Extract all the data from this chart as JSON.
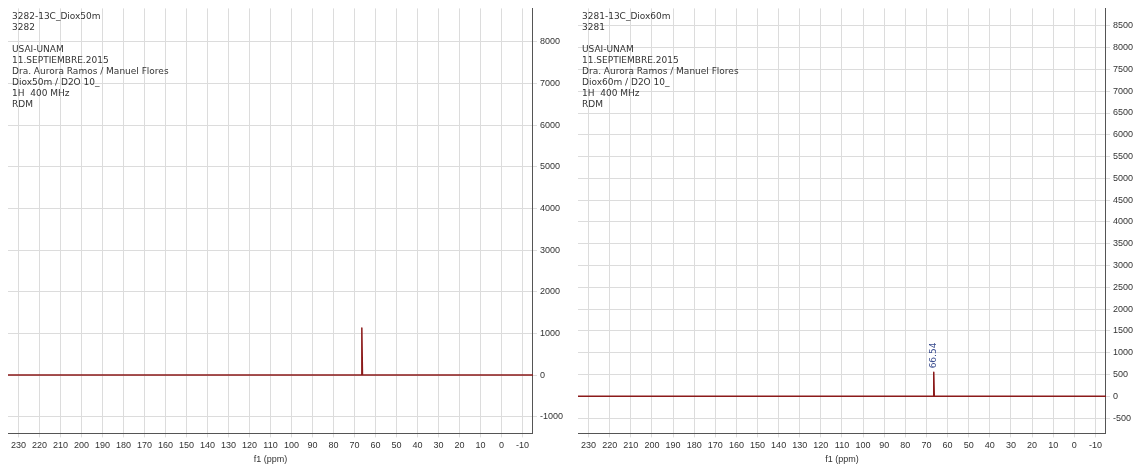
{
  "chart_data": [
    {
      "type": "line",
      "title": "3282-13C_Diox50m",
      "subtitle": "3282",
      "xlabel": "f1 (ppm)",
      "annotations": [
        "USAI-UNAM",
        "11.SEPTIEMBRE.2015",
        "Dra. Aurora Ramos / Manuel Flores",
        "Diox50m / D2O 10_",
        "1H  400 MHz",
        "RDM"
      ],
      "series": [
        {
          "color": "#8b1a1a",
          "x": [
            235,
            66.8,
            66.5,
            66.2,
            -15
          ],
          "values": [
            0,
            0,
            1130,
            0,
            0
          ]
        }
      ],
      "xlim": [
        235,
        -15
      ],
      "xticks": [
        230,
        220,
        210,
        200,
        190,
        180,
        170,
        160,
        150,
        140,
        130,
        120,
        110,
        100,
        90,
        80,
        70,
        60,
        50,
        40,
        30,
        20,
        10,
        0,
        -10
      ],
      "ylim": [
        -1400,
        8800
      ],
      "yticks": [
        -1000,
        0,
        1000,
        2000,
        3000,
        4000,
        5000,
        6000,
        7000,
        8000
      ],
      "grid": true,
      "legend": false,
      "marker": "none",
      "line_style": "solid"
    },
    {
      "type": "line",
      "title": "3281-13C_Diox60m",
      "subtitle": "3281",
      "xlabel": "f1 (ppm)",
      "annotations": [
        "USAI-UNAM",
        "11.SEPTIEMBRE.2015",
        "Dra. Aurora Ramos / Manuel Flores",
        "Diox60m / D2O 10_",
        "1H  400 MHz",
        "RDM",
        {
          "text": "66.54",
          "x": 66.54,
          "y": 550
        }
      ],
      "series": [
        {
          "color": "#8b1a1a",
          "x": [
            235,
            66.8,
            66.54,
            66.3,
            -15
          ],
          "values": [
            0,
            0,
            550,
            0,
            0
          ]
        }
      ],
      "xlim": [
        235,
        -15
      ],
      "xticks": [
        230,
        220,
        210,
        200,
        190,
        180,
        170,
        160,
        150,
        140,
        130,
        120,
        110,
        100,
        90,
        80,
        70,
        60,
        50,
        40,
        30,
        20,
        10,
        0,
        -10
      ],
      "ylim": [
        -850,
        8900
      ],
      "yticks": [
        -500,
        0,
        500,
        1000,
        1500,
        2000,
        2500,
        3000,
        3500,
        4000,
        4500,
        5000,
        5500,
        6000,
        6500,
        7000,
        7500,
        8000,
        8500
      ],
      "grid": true,
      "legend": false,
      "marker": "none",
      "line_style": "solid"
    }
  ]
}
